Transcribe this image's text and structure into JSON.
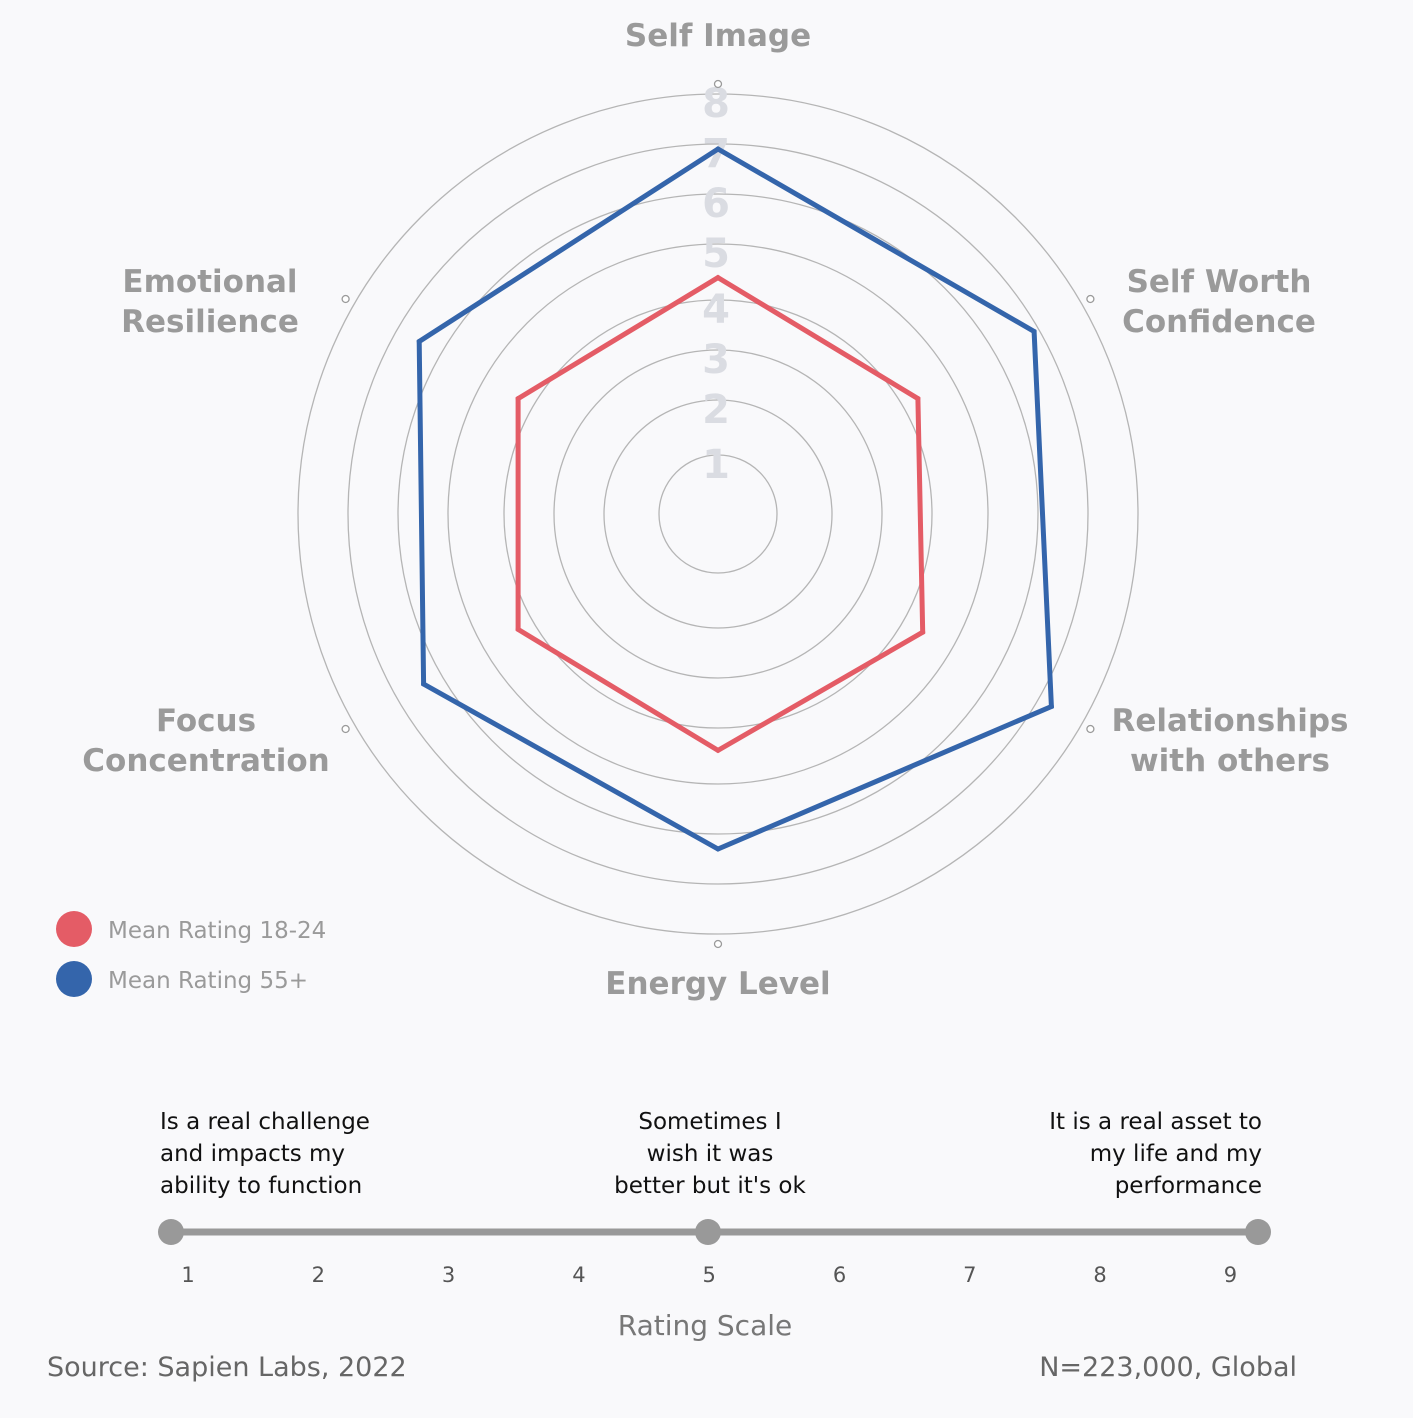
{
  "chart_data": {
    "type": "radar",
    "axes": [
      "Self Image",
      "Self Worth Confidence",
      "Relationships with others",
      "Energy Level",
      "Focus Concentration",
      "Emotional Resilience"
    ],
    "axis_label_lines": [
      [
        "Self Image"
      ],
      [
        "Self Worth",
        "Confidence"
      ],
      [
        "Relationships",
        "with others"
      ],
      [
        "Energy Level"
      ],
      [
        "Focus",
        "Concentration"
      ],
      [
        "Emotional",
        "Resilience"
      ]
    ],
    "r_ticks": [
      "1",
      "2",
      "3",
      "4",
      "5",
      "6",
      "7",
      "8"
    ],
    "rlim": [
      0,
      8
    ],
    "grid": true,
    "legend_position": "bottom-left",
    "series": [
      {
        "name": "Mean Rating 18-24",
        "color": "#e45c66",
        "values": [
          4.4,
          4.3,
          4.4,
          4.4,
          4.3,
          4.3
        ]
      },
      {
        "name": "Mean Rating 55+",
        "color": "#3465ab",
        "values": [
          6.9,
          6.9,
          7.3,
          6.3,
          6.4,
          6.5
        ]
      }
    ]
  },
  "rating_scale": {
    "title": "Rating Scale",
    "numbers": [
      "1",
      "2",
      "3",
      "4",
      "5",
      "6",
      "7",
      "8",
      "9"
    ],
    "descriptions": [
      {
        "value": 1,
        "lines": [
          "Is a real challenge",
          "and impacts my",
          "ability to function"
        ]
      },
      {
        "value": 5,
        "lines": [
          "Sometimes I",
          "wish it was",
          "better but it's ok"
        ]
      },
      {
        "value": 9,
        "lines": [
          "It is a real asset to",
          "my life and my",
          "performance"
        ]
      }
    ]
  },
  "footer": {
    "source": "Source: Sapien Labs, 2022",
    "sample": "N=223,000, Global"
  },
  "colors": {
    "grid": "#b5b5b5",
    "scale_bar": "#999999"
  }
}
